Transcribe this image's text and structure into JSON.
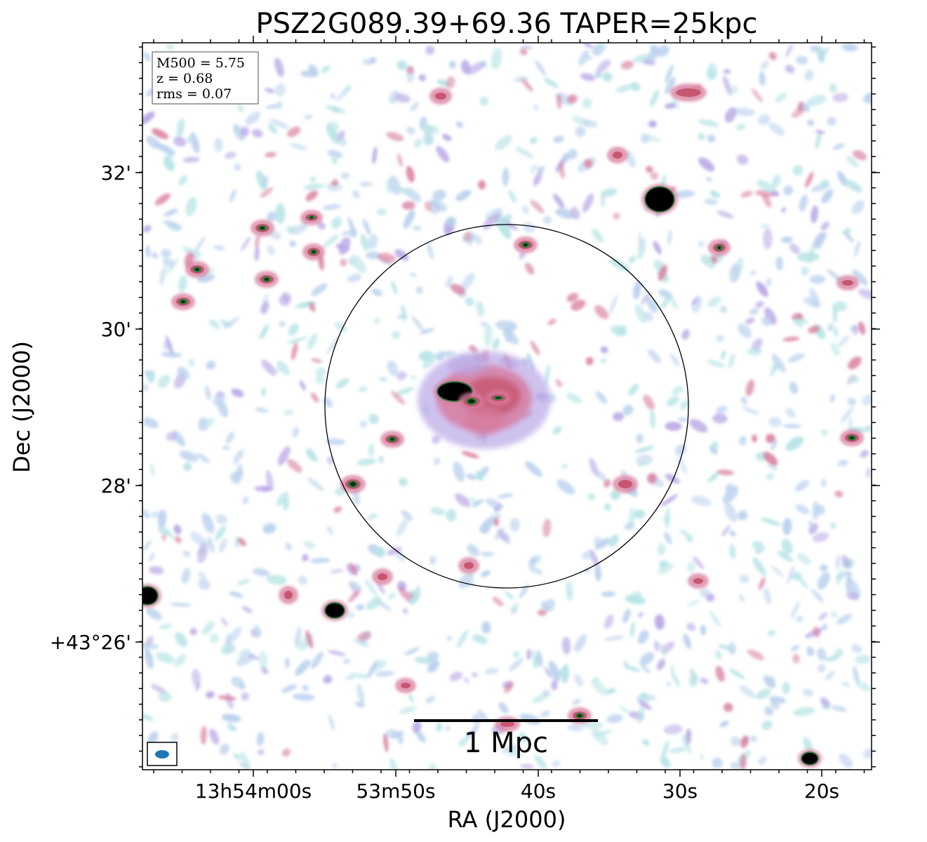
{
  "figure": {
    "title": "PSZ2G089.39+69.36 TAPER=25kpc",
    "xlabel": "RA (J2000)",
    "ylabel": "Dec (J2000)",
    "ra_ticks": [
      "13h54m00s",
      "53m50s",
      "40s",
      "30s",
      "20s"
    ],
    "dec_ticks": [
      "32'",
      "30'",
      "28'",
      "+43°26'"
    ],
    "info_box": {
      "m500": "M500 = 5.75",
      "z": "z = 0.68",
      "rms": "rms = 0.07"
    },
    "scale_bar_label": "1 Mpc",
    "beam_color": "#1f77b4",
    "colors": {
      "faint": "#bcd3ee",
      "cyan": "#b8e4e6",
      "lavender": "#b9a8e6",
      "pink": "#d77a9c",
      "red": "#c4506a",
      "green": "#2f7a3d",
      "black": "#000000"
    }
  }
}
